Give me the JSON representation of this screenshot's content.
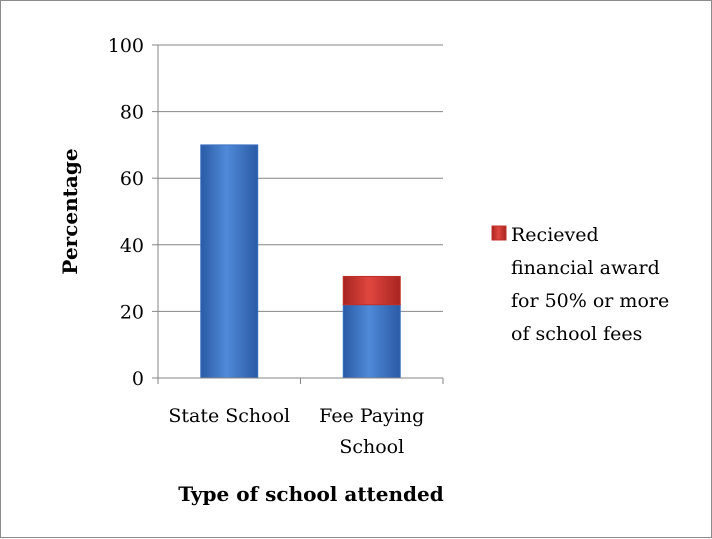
{
  "chart_data": {
    "type": "bar",
    "stacked": true,
    "title": "",
    "xlabel": "Type of school attended",
    "ylabel": "Percentage",
    "ylim": [
      0,
      100
    ],
    "yticks": [
      0,
      20,
      40,
      60,
      80,
      100
    ],
    "grid": true,
    "legend_position": "right",
    "categories": [
      {
        "lines": [
          "State School"
        ]
      },
      {
        "lines": [
          "Fee Paying",
          "School"
        ]
      }
    ],
    "series": [
      {
        "values": [
          70,
          22
        ],
        "color": "#3b73c4"
      },
      {
        "name": "Recieved financial award for 50% or more of school fees",
        "legend_lines": [
          "Recieved",
          "financial award",
          "for 50% or more",
          "of school fees"
        ],
        "values": [
          0,
          8.5
        ],
        "color": "#c0302b"
      }
    ]
  }
}
